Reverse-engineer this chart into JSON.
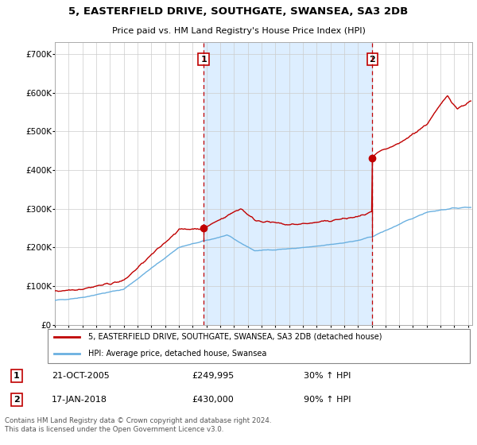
{
  "title": "5, EASTERFIELD DRIVE, SOUTHGATE, SWANSEA, SA3 2DB",
  "subtitle": "Price paid vs. HM Land Registry's House Price Index (HPI)",
  "legend_line1": "5, EASTERFIELD DRIVE, SOUTHGATE, SWANSEA, SA3 2DB (detached house)",
  "legend_line2": "HPI: Average price, detached house, Swansea",
  "footer": "Contains HM Land Registry data © Crown copyright and database right 2024.\nThis data is licensed under the Open Government Licence v3.0.",
  "transaction1_date": "21-OCT-2005",
  "transaction1_price": "£249,995",
  "transaction1_hpi": "30% ↑ HPI",
  "transaction1_year": 2005.8,
  "transaction2_date": "17-JAN-2018",
  "transaction2_price": "£430,000",
  "transaction2_hpi": "90% ↑ HPI",
  "transaction2_year": 2018.05,
  "transaction1_value": 249995,
  "transaction2_value": 430000,
  "hpi_color": "#6ab0e0",
  "price_color": "#c00000",
  "shade_color": "#ddeeff",
  "grid_color": "#cccccc",
  "ylim": [
    0,
    730000
  ],
  "xlim_start": 1995.0,
  "xlim_end": 2025.3,
  "bg_color": "#f8f8f8"
}
